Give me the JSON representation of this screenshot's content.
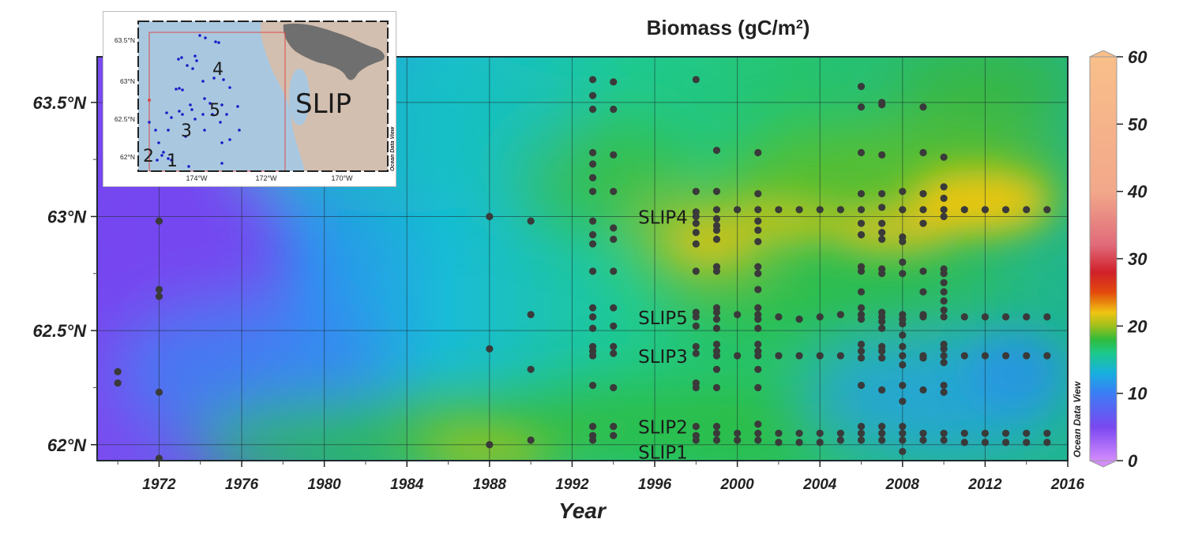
{
  "chart_data": {
    "type": "scatter",
    "title": "Biomass (gC/m",
    "title_sup": "2",
    "title_close": ")",
    "xlabel": "Year",
    "ylabel": "",
    "xlim": [
      1969,
      2016
    ],
    "ylim": [
      61.93,
      63.7
    ],
    "x_ticks": [
      "1972",
      "1976",
      "1980",
      "1984",
      "1988",
      "1992",
      "1996",
      "2000",
      "2004",
      "2008",
      "2012",
      "2016"
    ],
    "y_ticks": [
      {
        "value": 63.5,
        "label": "63.5°N"
      },
      {
        "value": 63.0,
        "label": "63°N"
      },
      {
        "value": 62.5,
        "label": "62.5°N"
      },
      {
        "value": 62.0,
        "label": "62°N"
      }
    ],
    "colorbar": {
      "range": [
        0,
        60
      ],
      "ticks": [
        "60",
        "50",
        "40",
        "30",
        "20",
        "10",
        "0"
      ],
      "stops": [
        {
          "v": 0,
          "c": "#d48cff"
        },
        {
          "v": 5,
          "c": "#7a48f0"
        },
        {
          "v": 10,
          "c": "#3b7df5"
        },
        {
          "v": 13,
          "c": "#17b0e0"
        },
        {
          "v": 16,
          "c": "#1dc98a"
        },
        {
          "v": 18,
          "c": "#2fbb3a"
        },
        {
          "v": 20,
          "c": "#9ec01c"
        },
        {
          "v": 22,
          "c": "#f0c412"
        },
        {
          "v": 25,
          "c": "#e34a0c"
        },
        {
          "v": 28,
          "c": "#d0202a"
        },
        {
          "v": 32,
          "c": "#e06a7a"
        },
        {
          "v": 40,
          "c": "#f2a88a"
        },
        {
          "v": 60,
          "c": "#f9bf8a"
        }
      ],
      "watermark": "Ocean Data View"
    },
    "site_labels": [
      {
        "text": "SLIP4",
        "year": 1995.2,
        "lat": 63.0
      },
      {
        "text": "SLIP5",
        "year": 1995.2,
        "lat": 62.56
      },
      {
        "text": "SLIP3",
        "year": 1995.2,
        "lat": 62.39
      },
      {
        "text": "SLIP2",
        "year": 1995.2,
        "lat": 62.08
      },
      {
        "text": "SLIP1",
        "year": 1995.2,
        "lat": 61.97
      }
    ],
    "sample_points": [
      {
        "year": 1970,
        "lats": [
          62.32,
          62.27
        ]
      },
      {
        "year": 1972,
        "lats": [
          62.98,
          62.68,
          62.65,
          62.23,
          61.94
        ]
      },
      {
        "year": 1988,
        "lats": [
          63.0,
          62.42,
          62.0
        ]
      },
      {
        "year": 1990,
        "lats": [
          62.98,
          62.57,
          62.33,
          62.02
        ]
      },
      {
        "year": 1993,
        "lats": [
          63.6,
          63.53,
          63.47,
          63.28,
          63.23,
          63.17,
          63.11,
          62.98,
          62.92,
          62.88,
          62.76,
          62.6,
          62.56,
          62.51,
          62.43,
          62.41,
          62.39,
          62.26,
          62.08,
          62.04,
          62.02
        ]
      },
      {
        "year": 1994,
        "lats": [
          63.59,
          63.47,
          63.27,
          63.11,
          62.95,
          62.9,
          62.76,
          62.6,
          62.52,
          62.43,
          62.4,
          62.25,
          62.08,
          62.04
        ]
      },
      {
        "year": 1998,
        "lats": [
          63.6,
          63.11,
          63.02,
          63.0,
          62.97,
          62.93,
          62.88,
          62.76,
          62.58,
          62.56,
          62.52,
          62.43,
          62.4,
          62.27,
          62.25,
          62.08,
          62.04,
          62.02
        ]
      },
      {
        "year": 1999,
        "lats": [
          63.29,
          63.11,
          63.03,
          62.99,
          62.96,
          62.94,
          62.9,
          62.78,
          62.76,
          62.6,
          62.58,
          62.55,
          62.51,
          62.44,
          62.41,
          62.39,
          62.33,
          62.25,
          62.08,
          62.05,
          62.02
        ]
      },
      {
        "year": 2000,
        "lats": [
          63.03,
          62.57,
          62.39,
          62.05,
          62.02
        ]
      },
      {
        "year": 2001,
        "lats": [
          63.28,
          63.1,
          63.03,
          62.98,
          62.94,
          62.89,
          62.78,
          62.75,
          62.68,
          62.6,
          62.57,
          62.55,
          62.51,
          62.44,
          62.41,
          62.39,
          62.33,
          62.25,
          62.09,
          62.05,
          62.02
        ]
      },
      {
        "year": 2002,
        "lats": [
          63.03,
          62.56,
          62.39,
          62.05,
          62.01
        ]
      },
      {
        "year": 2003,
        "lats": [
          63.03,
          62.55,
          62.39,
          62.05,
          62.01
        ]
      },
      {
        "year": 2004,
        "lats": [
          63.03,
          62.56,
          62.39,
          62.05,
          62.01
        ]
      },
      {
        "year": 2005,
        "lats": [
          63.03,
          62.57,
          62.39,
          62.05,
          62.02
        ]
      },
      {
        "year": 2006,
        "lats": [
          63.57,
          63.48,
          63.28,
          63.1,
          63.03,
          62.97,
          62.92,
          62.78,
          62.76,
          62.67,
          62.6,
          62.57,
          62.55,
          62.44,
          62.41,
          62.38,
          62.26,
          62.08,
          62.05,
          62.02
        ]
      },
      {
        "year": 2007,
        "lats": [
          63.5,
          63.49,
          63.27,
          63.1,
          63.04,
          62.97,
          62.93,
          62.9,
          62.77,
          62.75,
          62.58,
          62.56,
          62.54,
          62.51,
          62.43,
          62.41,
          62.38,
          62.24,
          62.08,
          62.05,
          62.02
        ]
      },
      {
        "year": 2008,
        "lats": [
          63.11,
          63.03,
          62.91,
          62.89,
          62.8,
          62.75,
          62.57,
          62.55,
          62.53,
          62.48,
          62.43,
          62.39,
          62.35,
          62.26,
          62.19,
          62.08,
          62.05,
          62.02,
          61.97
        ]
      },
      {
        "year": 2009,
        "lats": [
          63.48,
          63.28,
          63.1,
          63.03,
          62.97,
          62.76,
          62.67,
          62.57,
          62.56,
          62.39,
          62.38,
          62.24,
          62.05,
          62.02
        ]
      },
      {
        "year": 2010,
        "lats": [
          63.26,
          63.13,
          63.08,
          63.03,
          63.0,
          62.77,
          62.75,
          62.71,
          62.67,
          62.63,
          62.59,
          62.56,
          62.44,
          62.42,
          62.39,
          62.36,
          62.26,
          62.23,
          62.05,
          62.02
        ]
      },
      {
        "year": 2011,
        "lats": [
          63.03,
          62.56,
          62.39,
          62.05,
          62.01
        ]
      },
      {
        "year": 2012,
        "lats": [
          63.03,
          62.56,
          62.39,
          62.05,
          62.01
        ]
      },
      {
        "year": 2013,
        "lats": [
          63.03,
          62.56,
          62.39,
          62.05,
          62.01
        ]
      },
      {
        "year": 2014,
        "lats": [
          63.03,
          62.56,
          62.39,
          62.05,
          62.01
        ]
      },
      {
        "year": 2015,
        "lats": [
          63.03,
          62.56,
          62.39,
          62.05,
          62.01
        ]
      }
    ],
    "background_field_note": "interpolated biomass surface, 5-20 gC/m2",
    "inset_map": {
      "lat_ticks": [
        "63.5°N",
        "63°N",
        "62.5°N",
        "62°N"
      ],
      "lon_ticks": [
        "174°W",
        "172°W",
        "170°W"
      ],
      "big_label": "SLIP",
      "station_labels": [
        "1",
        "2",
        "3",
        "4",
        "5"
      ],
      "watermark": "Ocean Data View"
    }
  },
  "colors": {
    "point": "#3a3a3a",
    "grid": "#1e2a30",
    "text": "#222222",
    "ocean": "#a9c8e0",
    "land": "#d3bfb0",
    "highland": "#6f6f6f",
    "station": "#1c1cc8",
    "box": "#d94a4a"
  }
}
